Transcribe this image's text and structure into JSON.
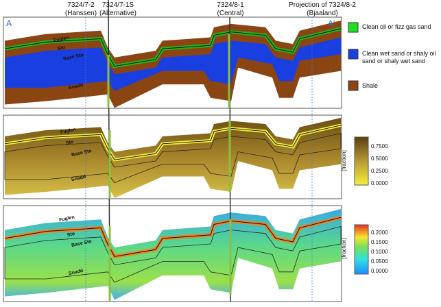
{
  "header": {
    "wells": [
      {
        "name": "7324/7-2",
        "sub": "(Hanssen)"
      },
      {
        "name": "7324/7-1S",
        "sub": "(Alternative)"
      },
      {
        "name": "7324/8-1",
        "sub": "(Central)"
      },
      {
        "name": "Projection of  7324/8-2",
        "sub": "(Bjaaland)"
      }
    ]
  },
  "panels": [
    {
      "start": "A",
      "end": "A'",
      "labels": [
        "Fuglen",
        "Sto",
        "Base Sto",
        "Snadd"
      ]
    },
    {
      "labels": [
        "Fuglen",
        "Sto",
        "Base Sto",
        "Snadd"
      ]
    },
    {
      "labels": [
        "Fuglen",
        "Sto",
        "Base Sto",
        "Snadd"
      ]
    }
  ],
  "legend": {
    "items": [
      "Clean oil or fizz gas sand",
      "Clean wet sand or shaly oil sand or shaly wet sand",
      "Shale"
    ]
  },
  "colorbars": [
    {
      "ticks": [
        "0.7500",
        "0.5000",
        "0.2500",
        "0.0000"
      ],
      "label": "[fraction]"
    },
    {
      "ticks": [
        "0.2000",
        "0.1500",
        "0.1000",
        "0.0500",
        "0.0000"
      ],
      "label": "[fraction]"
    }
  ]
}
